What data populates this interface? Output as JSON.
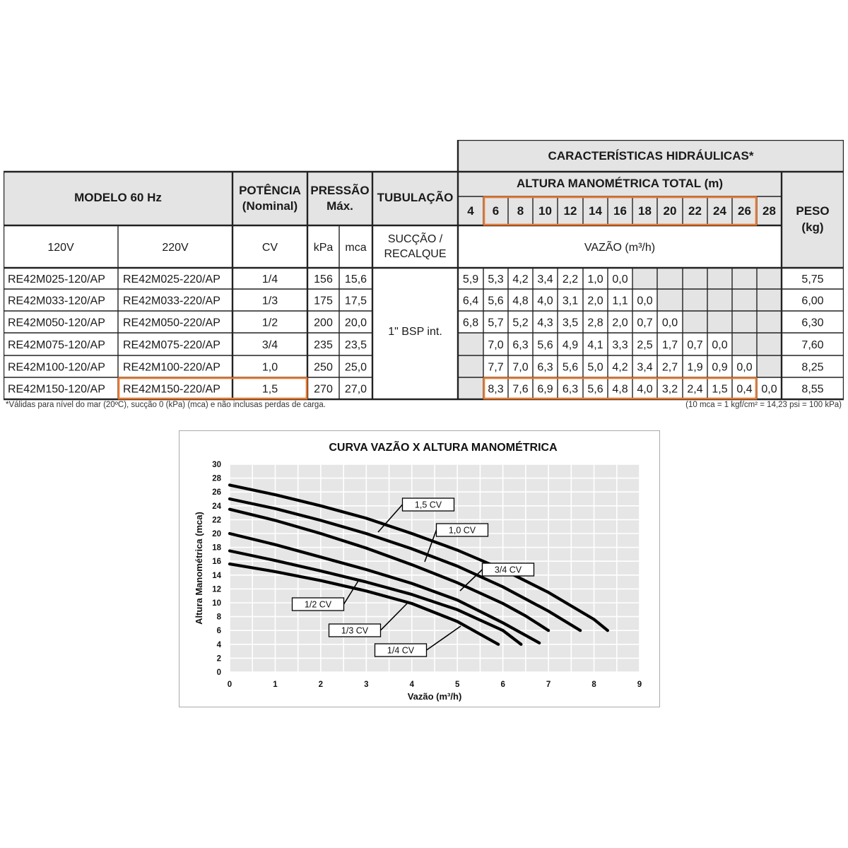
{
  "table": {
    "section_title": "CARACTERÍSTICAS HIDRÁULICAS*",
    "subsection_title": "ALTURA MANOMÉTRICA TOTAL (m)",
    "col_model": "MODELO 60 Hz",
    "col_power_line1": "POTÊNCIA",
    "col_power_line2": "(Nominal)",
    "col_pressure_line1": "PRESSÃO",
    "col_pressure_line2": "Máx.",
    "col_pipe": "TUBULAÇÃO",
    "col_weight_line1": "PESO",
    "col_weight_line2": "(kg)",
    "unit_120v": "120V",
    "unit_220v": "220V",
    "unit_power": "CV",
    "unit_kpa": "kPa",
    "unit_mca": "mca",
    "unit_pipe_line1": "SUCÇÃO /",
    "unit_pipe_line2": "RECALQUE",
    "unit_flow": "VAZÃO (m³/h)",
    "pipe_value": "1\" BSP int.",
    "heads": [
      "4",
      "6",
      "8",
      "10",
      "12",
      "14",
      "16",
      "18",
      "20",
      "22",
      "24",
      "26",
      "28"
    ],
    "rows": [
      {
        "m120": "RE42M025-120/AP",
        "m220": "RE42M025-220/AP",
        "cv": "1/4",
        "kpa": "156",
        "mca": "15,6",
        "flows": [
          "5,9",
          "5,3",
          "4,2",
          "3,4",
          "2,2",
          "1,0",
          "0,0",
          "",
          "",
          "",
          "",
          "",
          ""
        ],
        "kg": "5,75"
      },
      {
        "m120": "RE42M033-120/AP",
        "m220": "RE42M033-220/AP",
        "cv": "1/3",
        "kpa": "175",
        "mca": "17,5",
        "flows": [
          "6,4",
          "5,6",
          "4,8",
          "4,0",
          "3,1",
          "2,0",
          "1,1",
          "0,0",
          "",
          "",
          "",
          "",
          ""
        ],
        "kg": "6,00"
      },
      {
        "m120": "RE42M050-120/AP",
        "m220": "RE42M050-220/AP",
        "cv": "1/2",
        "kpa": "200",
        "mca": "20,0",
        "flows": [
          "6,8",
          "5,7",
          "5,2",
          "4,3",
          "3,5",
          "2,8",
          "2,0",
          "0,7",
          "0,0",
          "",
          "",
          "",
          ""
        ],
        "kg": "6,30"
      },
      {
        "m120": "RE42M075-120/AP",
        "m220": "RE42M075-220/AP",
        "cv": "3/4",
        "kpa": "235",
        "mca": "23,5",
        "flows": [
          "",
          "7,0",
          "6,3",
          "5,6",
          "4,9",
          "4,1",
          "3,3",
          "2,5",
          "1,7",
          "0,7",
          "0,0",
          "",
          ""
        ],
        "kg": "7,60"
      },
      {
        "m120": "RE42M100-120/AP",
        "m220": "RE42M100-220/AP",
        "cv": "1,0",
        "kpa": "250",
        "mca": "25,0",
        "flows": [
          "",
          "7,7",
          "7,0",
          "6,3",
          "5,6",
          "5,0",
          "4,2",
          "3,4",
          "2,7",
          "1,9",
          "0,9",
          "0,0",
          ""
        ],
        "kg": "8,25"
      },
      {
        "m120": "RE42M150-120/AP",
        "m220": "RE42M150-220/AP",
        "cv": "1,5",
        "kpa": "270",
        "mca": "27,0",
        "flows": [
          "",
          "8,3",
          "7,6",
          "6,9",
          "6,3",
          "5,6",
          "4,8",
          "4,0",
          "3,2",
          "2,4",
          "1,5",
          "0,4",
          "0,0"
        ],
        "kg": "8,55"
      }
    ],
    "highlight_color": "#e8772e",
    "grey_cell_color": "#e4e4e4"
  },
  "footnote": "*Válidas para nível do mar (20ºC), sucção 0 (kPa) (mca) e não inclusas perdas de carga.",
  "conversion_note": "(10 mca = 1 kgf/cm² = 14,23 psi = 100 kPa)",
  "chart_data": {
    "type": "line",
    "title": "CURVA VAZÃO X ALTURA MANOMÉTRICA",
    "xlabel": "Vazão (m³/h)",
    "ylabel": "Altura Manométrica (mca)",
    "xlim": [
      0,
      9
    ],
    "ylim": [
      0,
      30
    ],
    "x_ticks": [
      "0",
      "1",
      "2",
      "3",
      "4",
      "5",
      "6",
      "7",
      "8",
      "9"
    ],
    "y_ticks": [
      "0",
      "2",
      "4",
      "6",
      "8",
      "10",
      "12",
      "14",
      "16",
      "18",
      "20",
      "22",
      "24",
      "26",
      "28",
      "30"
    ],
    "grid": true,
    "series": [
      {
        "name": "1,5 CV",
        "x": [
          0,
          1,
          2,
          3,
          4,
          5,
          6,
          7,
          8,
          8.3
        ],
        "y": [
          27.0,
          25.6,
          24.0,
          22.2,
          20.0,
          17.6,
          14.8,
          11.5,
          7.6,
          6.0
        ]
      },
      {
        "name": "1,0 CV",
        "x": [
          0,
          1,
          2,
          3,
          4,
          5,
          6,
          7,
          7.7
        ],
        "y": [
          25.0,
          23.6,
          21.9,
          20.0,
          17.8,
          15.3,
          12.3,
          8.8,
          6.0
        ]
      },
      {
        "name": "3/4 CV",
        "x": [
          0,
          1,
          2,
          3,
          4,
          5,
          6,
          6.5,
          7.0
        ],
        "y": [
          23.5,
          21.9,
          20.0,
          17.9,
          15.5,
          12.9,
          9.9,
          8.1,
          6.0
        ]
      },
      {
        "name": "1/2 CV",
        "x": [
          0,
          1,
          2,
          3,
          4,
          5,
          6,
          6.8
        ],
        "y": [
          20.0,
          18.4,
          16.6,
          14.8,
          12.8,
          10.4,
          7.1,
          4.2
        ]
      },
      {
        "name": "1/3 CV",
        "x": [
          0,
          1,
          2,
          3,
          4,
          5,
          6,
          6.4
        ],
        "y": [
          17.5,
          16.1,
          14.6,
          13.0,
          11.2,
          9.0,
          6.0,
          4.0
        ]
      },
      {
        "name": "1/4 CV",
        "x": [
          0,
          1,
          2,
          3,
          4,
          5,
          5.9
        ],
        "y": [
          15.6,
          14.5,
          13.2,
          11.7,
          9.9,
          7.3,
          4.0
        ]
      }
    ]
  }
}
